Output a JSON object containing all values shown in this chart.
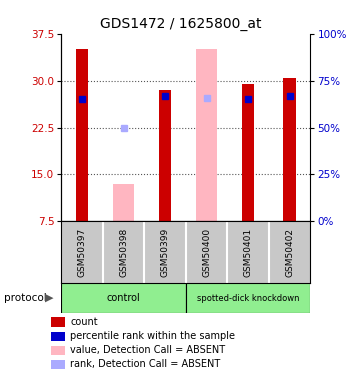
{
  "title": "GDS1472 / 1625800_at",
  "samples": [
    "GSM50397",
    "GSM50398",
    "GSM50399",
    "GSM50400",
    "GSM50401",
    "GSM50402"
  ],
  "bar_values": [
    35.0,
    null,
    28.5,
    null,
    29.5,
    30.5
  ],
  "bar_color": "#cc0000",
  "absent_bar_values": [
    null,
    13.5,
    null,
    35.0,
    null,
    null
  ],
  "absent_bar_color": "#ffb6c1",
  "blue_rank_values": [
    27.0,
    null,
    27.5,
    null,
    27.0,
    27.5
  ],
  "blue_rank_color": "#0000cc",
  "absent_rank_values": [
    null,
    22.5,
    null,
    27.2,
    null,
    null
  ],
  "absent_rank_color": "#aaaaff",
  "ylim": [
    7.5,
    37.5
  ],
  "yticks_left": [
    7.5,
    15.0,
    22.5,
    30.0,
    37.5
  ],
  "yticks_right": [
    0,
    25,
    50,
    75,
    100
  ],
  "left_tick_color": "#cc0000",
  "right_tick_color": "#0000cc",
  "grid_yticks": [
    15.0,
    22.5,
    30.0
  ],
  "bar_width": 0.3,
  "absent_bar_width": 0.5,
  "control_color": "#90ee90",
  "kd_color": "#90ee90",
  "sample_bg_color": "#c8c8c8",
  "legend_items": [
    {
      "label": "count",
      "color": "#cc0000"
    },
    {
      "label": "percentile rank within the sample",
      "color": "#0000cc"
    },
    {
      "label": "value, Detection Call = ABSENT",
      "color": "#ffb6c1"
    },
    {
      "label": "rank, Detection Call = ABSENT",
      "color": "#aaaaff"
    }
  ]
}
